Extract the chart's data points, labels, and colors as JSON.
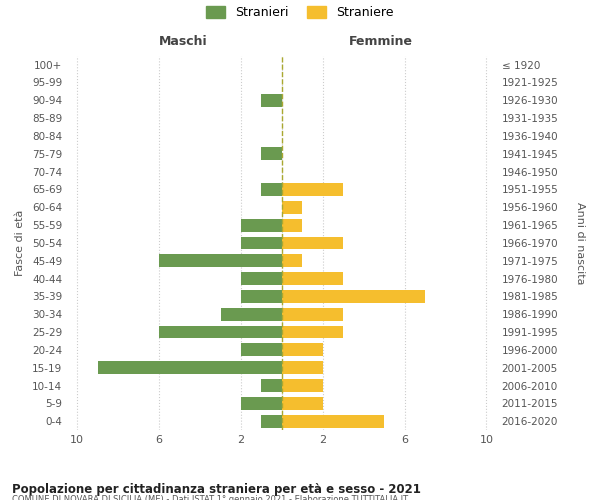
{
  "age_groups": [
    "0-4",
    "5-9",
    "10-14",
    "15-19",
    "20-24",
    "25-29",
    "30-34",
    "35-39",
    "40-44",
    "45-49",
    "50-54",
    "55-59",
    "60-64",
    "65-69",
    "70-74",
    "75-79",
    "80-84",
    "85-89",
    "90-94",
    "95-99",
    "100+"
  ],
  "birth_years": [
    "2016-2020",
    "2011-2015",
    "2006-2010",
    "2001-2005",
    "1996-2000",
    "1991-1995",
    "1986-1990",
    "1981-1985",
    "1976-1980",
    "1971-1975",
    "1966-1970",
    "1961-1965",
    "1956-1960",
    "1951-1955",
    "1946-1950",
    "1941-1945",
    "1936-1940",
    "1931-1935",
    "1926-1930",
    "1921-1925",
    "≤ 1920"
  ],
  "maschi": [
    1,
    2,
    1,
    9,
    2,
    6,
    3,
    2,
    2,
    6,
    2,
    2,
    0,
    1,
    0,
    1,
    0,
    0,
    1,
    0,
    0
  ],
  "femmine": [
    5,
    2,
    2,
    2,
    2,
    3,
    3,
    7,
    3,
    1,
    3,
    1,
    1,
    3,
    0,
    0,
    0,
    0,
    0,
    0,
    0
  ],
  "maschi_color": "#6a9a50",
  "femmine_color": "#f5be2e",
  "title": "Popolazione per cittadinanza straniera per età e sesso - 2021",
  "subtitle": "COMUNE DI NOVARA DI SICILIA (ME) - Dati ISTAT 1° gennaio 2021 - Elaborazione TUTTITALIA.IT",
  "legend_maschi": "Stranieri",
  "legend_femmine": "Straniere",
  "xlabel_left": "Maschi",
  "xlabel_right": "Femmine",
  "ylabel_left": "Fasce di età",
  "ylabel_right": "Anni di nascita",
  "background_color": "#ffffff",
  "grid_color": "#cccccc"
}
